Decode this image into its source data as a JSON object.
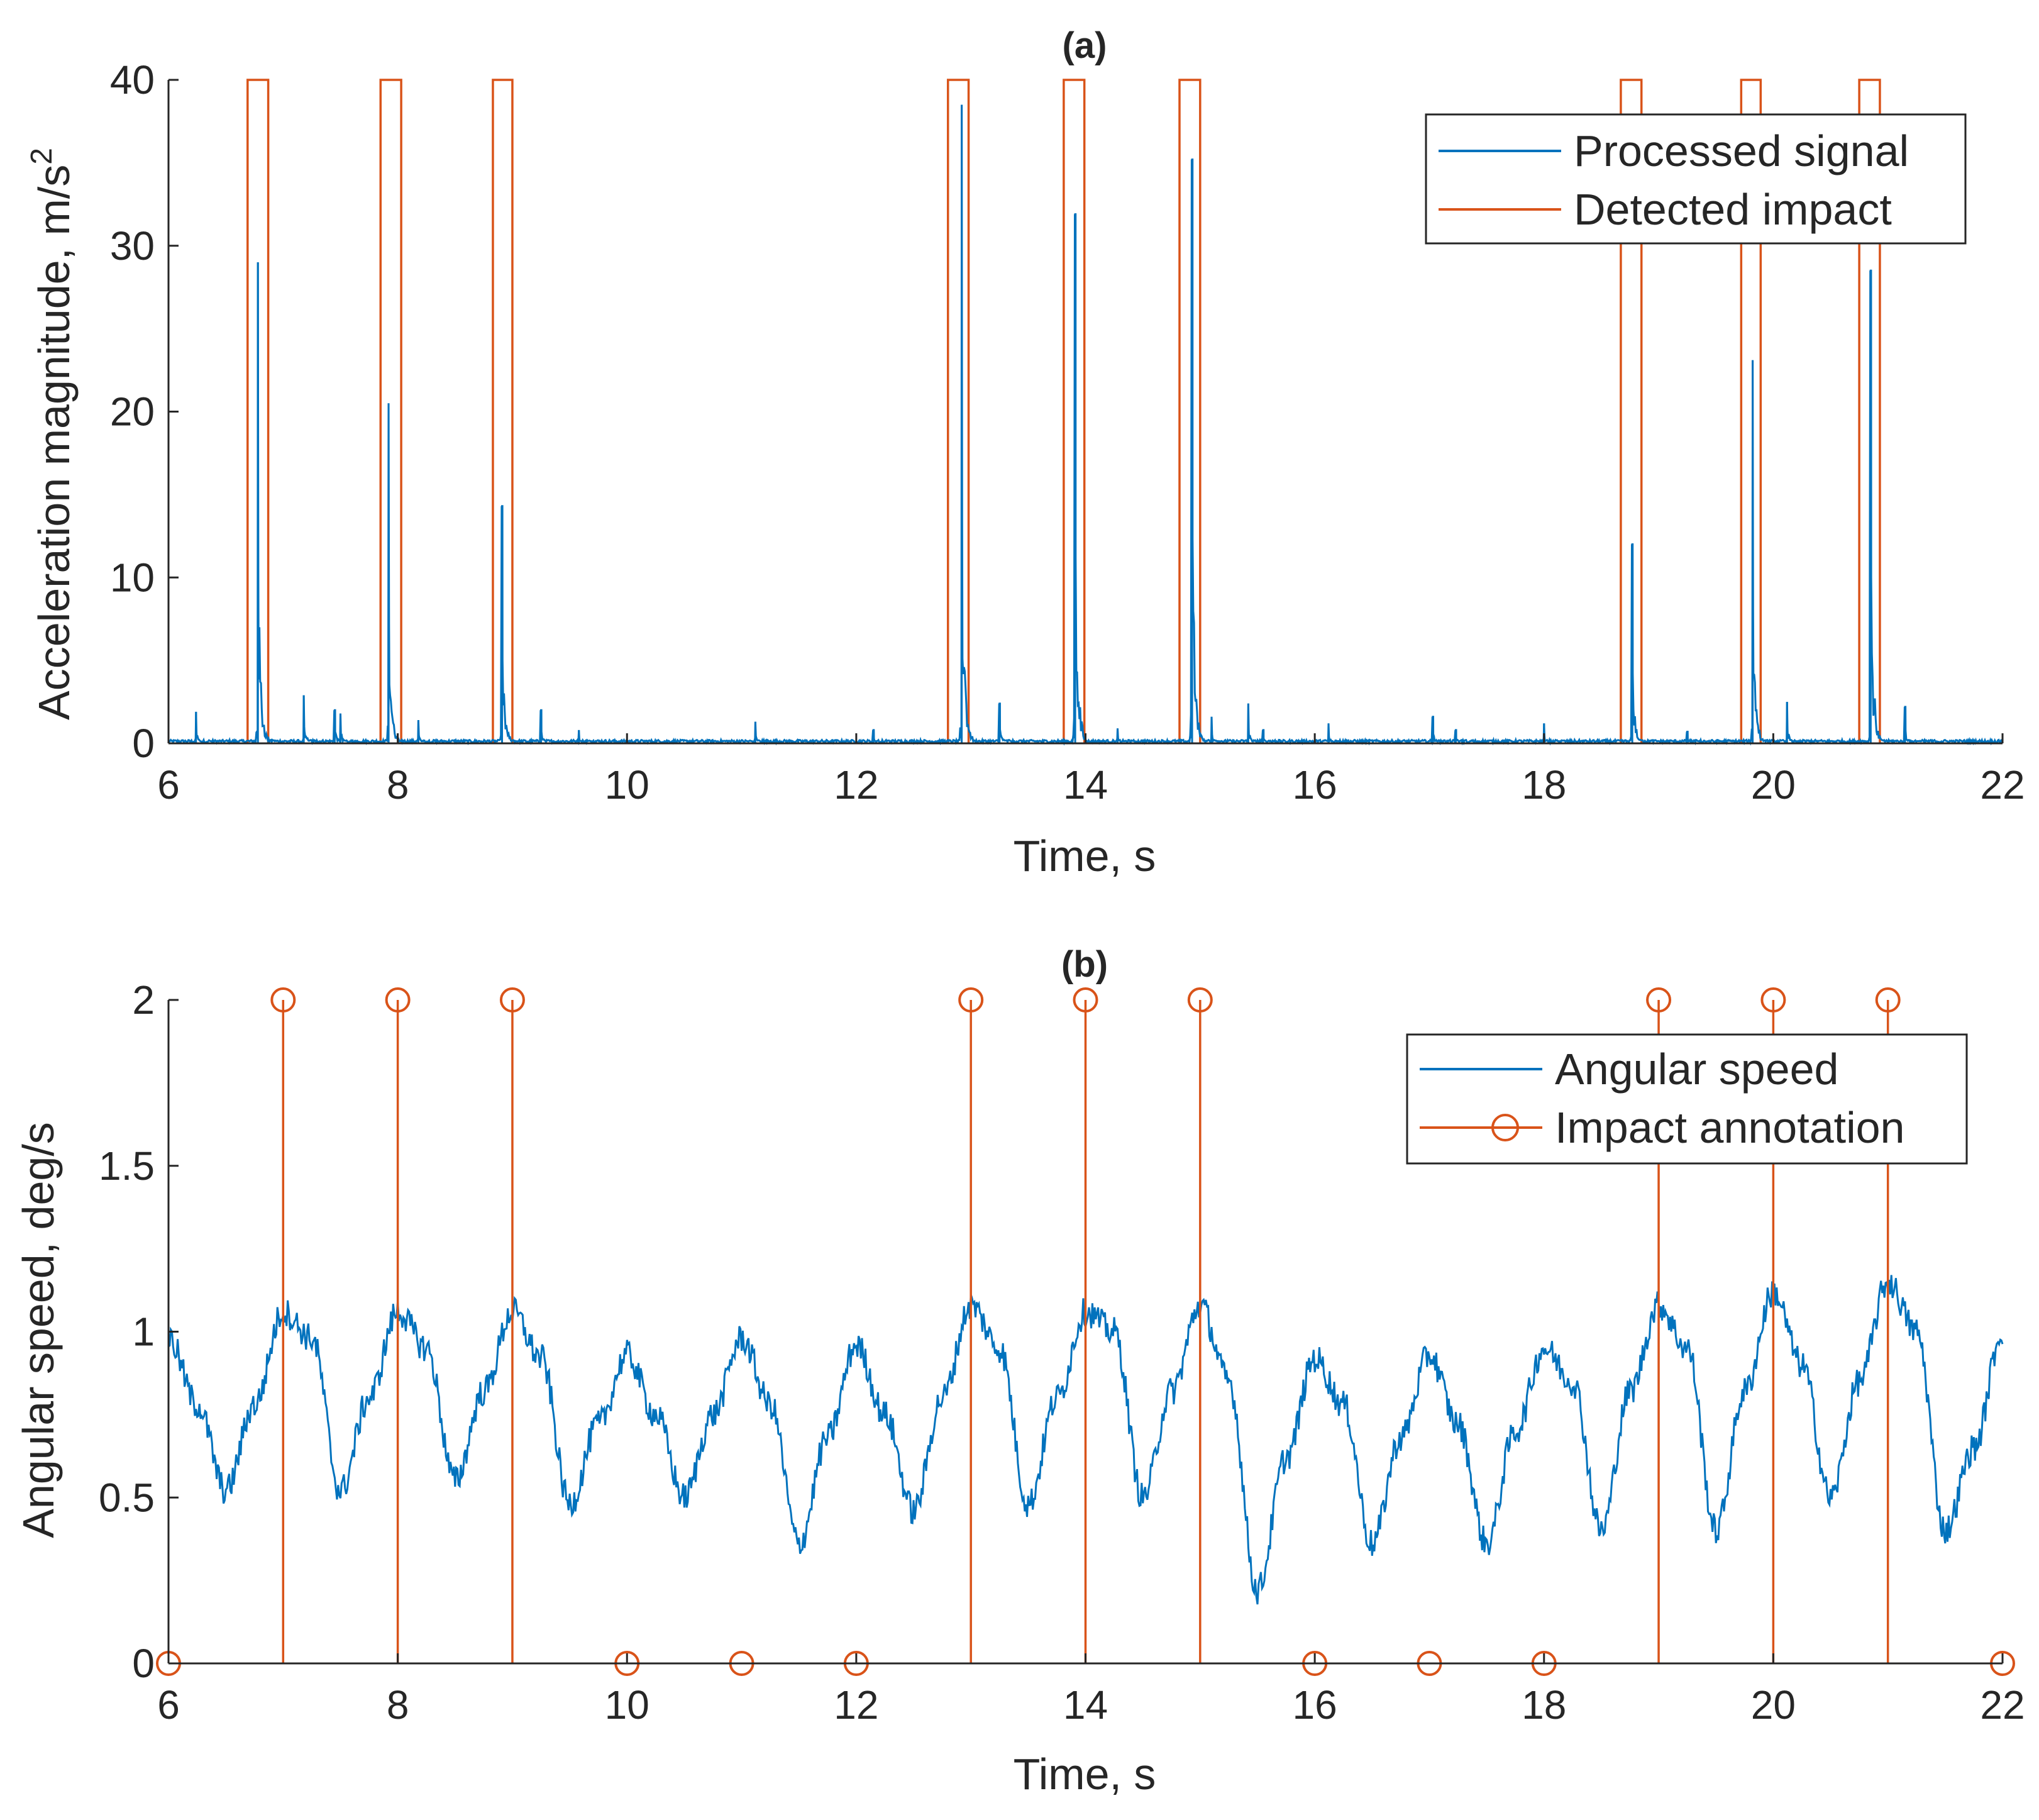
{
  "colors": {
    "signal": "#0072BD",
    "impact": "#D95319",
    "axis": "#262626",
    "background": "#ffffff"
  },
  "chart_data": [
    {
      "id": "a",
      "type": "line",
      "title": "(a)",
      "xlabel": "Time, s",
      "ylabel_main": "Acceleration magnitude, m/s",
      "ylabel_sup": "2",
      "xlim": [
        6,
        22
      ],
      "ylim": [
        0,
        40
      ],
      "xticks": [
        6,
        8,
        10,
        12,
        14,
        16,
        18,
        20,
        22
      ],
      "yticks": [
        0,
        10,
        20,
        30,
        40
      ],
      "legend_position": "top-right",
      "series": [
        {
          "name": "Processed signal",
          "style": "line",
          "baseline": 0.15,
          "spikes": [
            {
              "t": 6.24,
              "v": 1.9
            },
            {
              "t": 6.78,
              "v": 29.0
            },
            {
              "t": 7.18,
              "v": 2.9
            },
            {
              "t": 7.45,
              "v": 2.0
            },
            {
              "t": 7.5,
              "v": 1.8
            },
            {
              "t": 7.92,
              "v": 20.5
            },
            {
              "t": 8.18,
              "v": 1.4
            },
            {
              "t": 8.91,
              "v": 14.3
            },
            {
              "t": 9.25,
              "v": 2.0
            },
            {
              "t": 9.58,
              "v": 0.8
            },
            {
              "t": 11.12,
              "v": 1.3
            },
            {
              "t": 12.15,
              "v": 0.8
            },
            {
              "t": 12.92,
              "v": 38.5
            },
            {
              "t": 13.25,
              "v": 2.4
            },
            {
              "t": 13.91,
              "v": 31.9
            },
            {
              "t": 14.28,
              "v": 0.9
            },
            {
              "t": 14.93,
              "v": 35.2
            },
            {
              "t": 15.1,
              "v": 1.6
            },
            {
              "t": 15.42,
              "v": 2.4
            },
            {
              "t": 15.55,
              "v": 0.8
            },
            {
              "t": 16.12,
              "v": 1.2
            },
            {
              "t": 17.03,
              "v": 1.6
            },
            {
              "t": 17.23,
              "v": 0.8
            },
            {
              "t": 18.0,
              "v": 1.2
            },
            {
              "t": 18.77,
              "v": 12.0
            },
            {
              "t": 19.25,
              "v": 0.7
            },
            {
              "t": 19.82,
              "v": 23.1
            },
            {
              "t": 20.12,
              "v": 2.5
            },
            {
              "t": 20.85,
              "v": 28.5
            },
            {
              "t": 21.15,
              "v": 2.2
            }
          ]
        },
        {
          "name": "Detected impact",
          "style": "rectangular-pulse",
          "high": 40,
          "low": 0,
          "windows": [
            [
              6.69,
              6.87
            ],
            [
              7.85,
              8.03
            ],
            [
              8.83,
              9.0
            ],
            [
              12.8,
              12.98
            ],
            [
              13.81,
              13.99
            ],
            [
              14.82,
              15.0
            ],
            [
              18.67,
              18.85
            ],
            [
              19.72,
              19.89
            ],
            [
              20.75,
              20.93
            ]
          ]
        }
      ]
    },
    {
      "id": "b",
      "type": "line",
      "title": "(b)",
      "xlabel": "Time, s",
      "ylabel_main": "Angular speed, deg/s",
      "xlim": [
        6,
        22
      ],
      "ylim": [
        0,
        2
      ],
      "xticks": [
        6,
        8,
        10,
        12,
        14,
        16,
        18,
        20,
        22
      ],
      "yticks": [
        0,
        0.5,
        1,
        1.5,
        2
      ],
      "legend_position": "top-right",
      "series": [
        {
          "name": "Angular speed",
          "style": "noisy-oscillation",
          "x": [
            6.0,
            6.25,
            6.5,
            6.75,
            7.0,
            7.25,
            7.5,
            7.75,
            8.0,
            8.25,
            8.5,
            8.75,
            9.0,
            9.25,
            9.5,
            9.75,
            10.0,
            10.25,
            10.5,
            10.75,
            11.0,
            11.25,
            11.5,
            11.75,
            12.0,
            12.25,
            12.5,
            12.75,
            13.0,
            13.25,
            13.5,
            13.75,
            14.0,
            14.25,
            14.5,
            14.75,
            15.0,
            15.25,
            15.5,
            15.75,
            16.0,
            16.25,
            16.5,
            16.75,
            17.0,
            17.25,
            17.5,
            17.75,
            18.0,
            18.25,
            18.5,
            18.75,
            19.0,
            19.25,
            19.5,
            19.75,
            20.0,
            20.25,
            20.5,
            20.75,
            21.0,
            21.25,
            21.5,
            21.75,
            22.0
          ],
          "values": [
            0.98,
            0.78,
            0.52,
            0.78,
            1.06,
            0.98,
            0.52,
            0.8,
            1.06,
            0.95,
            0.55,
            0.82,
            1.06,
            0.92,
            0.48,
            0.72,
            0.93,
            0.75,
            0.5,
            0.75,
            0.98,
            0.78,
            0.36,
            0.68,
            0.96,
            0.75,
            0.46,
            0.8,
            1.08,
            0.95,
            0.48,
            0.8,
            1.06,
            1.0,
            0.5,
            0.82,
            1.08,
            0.85,
            0.22,
            0.62,
            0.92,
            0.78,
            0.36,
            0.68,
            0.93,
            0.72,
            0.36,
            0.7,
            0.95,
            0.85,
            0.4,
            0.82,
            1.08,
            0.95,
            0.4,
            0.82,
            1.12,
            0.9,
            0.5,
            0.85,
            1.15,
            1.0,
            0.4,
            0.65,
            1.0
          ]
        },
        {
          "name": "Impact annotation",
          "style": "stem",
          "x": [
            6,
            7,
            8,
            9,
            10,
            11,
            12,
            13,
            14,
            15,
            16,
            17,
            18,
            19,
            20,
            21,
            22
          ],
          "values": [
            0,
            2,
            2,
            2,
            0,
            0,
            0,
            2,
            2,
            2,
            0,
            0,
            0,
            2,
            2,
            2,
            0
          ]
        }
      ]
    }
  ]
}
